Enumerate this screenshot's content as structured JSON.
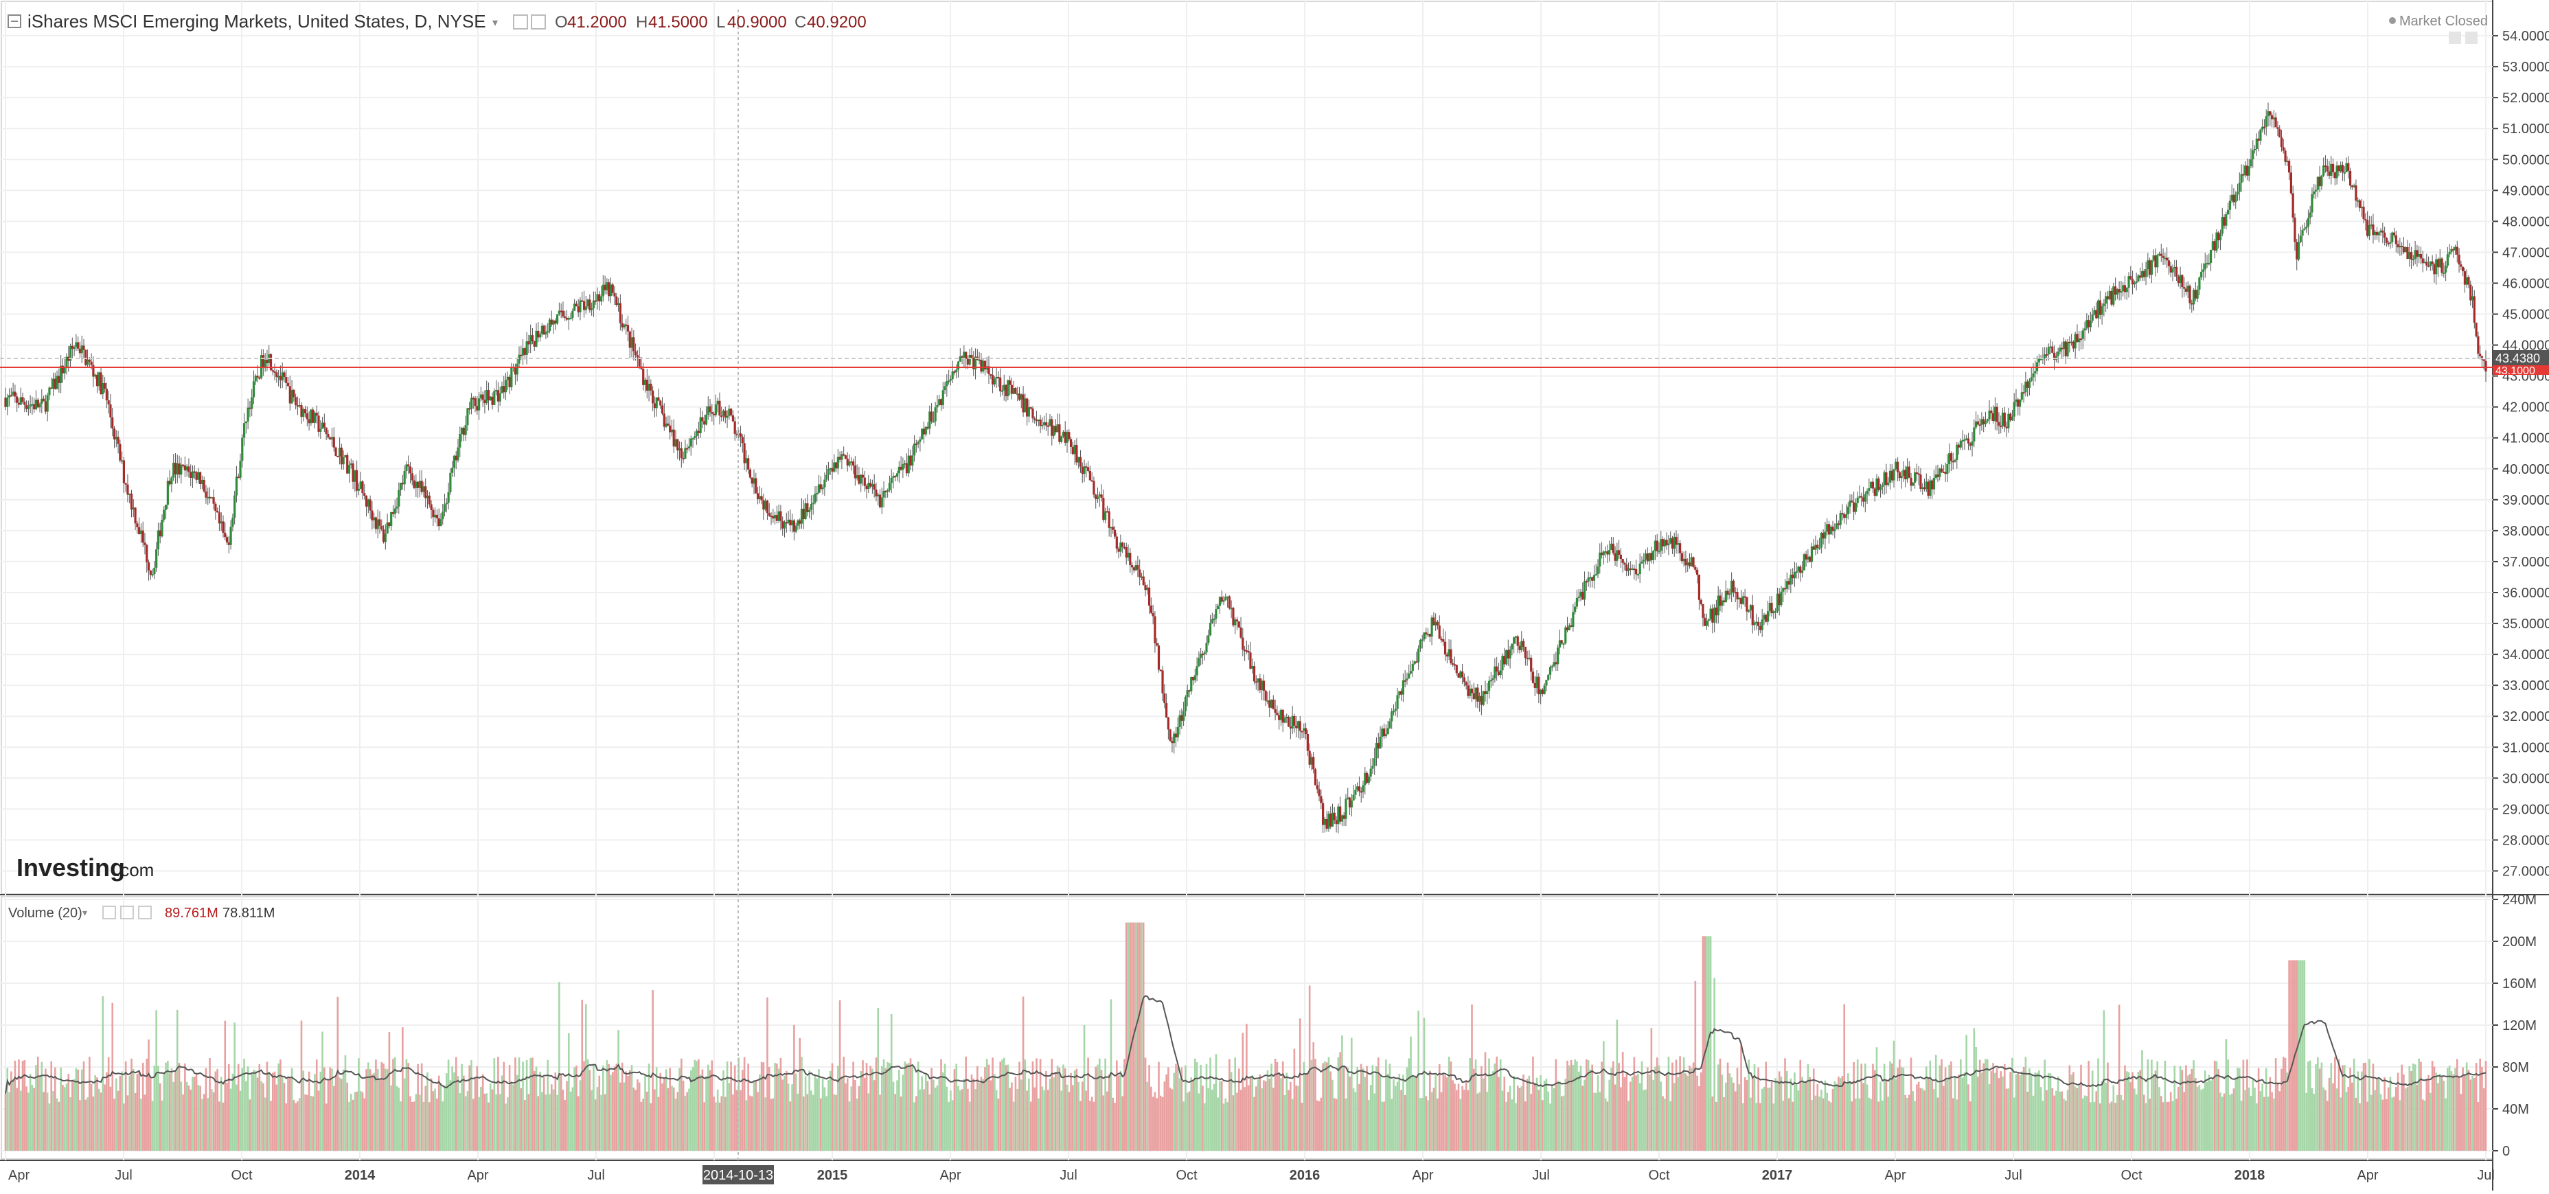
{
  "header": {
    "title": "iShares MSCI Emerging Markets, United States, D, NYSE",
    "open_label": "O",
    "open_value": "41.2000",
    "high_label": "H",
    "high_value": "41.5000",
    "low_label": "L",
    "low_value": "40.9000",
    "close_label": "C",
    "close_value": "40.9200",
    "market_status": "Market Closed"
  },
  "watermark": {
    "brand": "Investing",
    "suffix": ".com"
  },
  "volume_legend": {
    "label": "Volume (20)",
    "value": "89.761M",
    "ma_value": "78.811M"
  },
  "price_markers": {
    "last": "43.4380",
    "current": "43.1000"
  },
  "crosshair_date": "2014-10-13",
  "colors": {
    "up": "#2e8b3a",
    "down": "#a52a2a",
    "vol_up": "#a5d6a7",
    "vol_down": "#e8a0a0",
    "last_line": "#e53935",
    "ma": "#555555"
  },
  "chart_data": [
    {
      "type": "candlestick",
      "title": "iShares MSCI Emerging Markets, United States, D, NYSE",
      "x_ticks": [
        "Apr",
        "Jul",
        "Oct",
        "2014",
        "Apr",
        "Jul",
        "2014-10-13",
        "2015",
        "Apr",
        "Jul",
        "Oct",
        "2016",
        "Apr",
        "Jul",
        "Oct",
        "2017",
        "Apr",
        "Jul",
        "Oct",
        "2018",
        "Apr",
        "Jul"
      ],
      "y_ticks": [
        "54.0000",
        "53.0000",
        "52.0000",
        "51.0000",
        "50.0000",
        "49.0000",
        "48.0000",
        "47.0000",
        "46.0000",
        "45.0000",
        "44.0000",
        "43.0000",
        "42.0000",
        "41.0000",
        "40.0000",
        "39.0000",
        "38.0000",
        "37.0000",
        "36.0000",
        "35.0000",
        "34.0000",
        "33.0000",
        "32.0000",
        "31.0000",
        "30.0000",
        "29.0000",
        "28.0000",
        "27.0000"
      ],
      "ylim": [
        26.3,
        54.8
      ],
      "xlim": [
        2013.25,
        2018.5
      ],
      "grid": true,
      "series": [
        {
          "x": [
            2013.25,
            2013.33,
            2013.4,
            2013.46,
            2013.5,
            2013.56,
            2013.6,
            2013.66,
            2013.72,
            2013.76,
            2013.8,
            2013.86,
            2013.92,
            2013.98,
            2014.05,
            2014.1,
            2014.17,
            2014.23,
            2014.3,
            2014.38,
            2014.46,
            2014.53,
            2014.6,
            2014.63,
            2014.68,
            2014.75,
            2014.78,
            2014.85,
            2014.92,
            2014.97,
            2015.02,
            2015.1,
            2015.17,
            2015.22,
            2015.27,
            2015.32,
            2015.37,
            2015.44,
            2015.5,
            2015.55,
            2015.6,
            2015.65,
            2015.67,
            2015.72,
            2015.77,
            2015.83,
            2015.88,
            2015.94,
            2016.0,
            2016.04,
            2016.08,
            2016.13,
            2016.2,
            2016.27,
            2016.33,
            2016.37,
            2016.45,
            2016.5,
            2016.58,
            2016.64,
            2016.7,
            2016.76,
            2016.82,
            2016.85,
            2016.9,
            2016.96,
            2017.0,
            2017.08,
            2017.16,
            2017.25,
            2017.32,
            2017.38,
            2017.45,
            2017.49,
            2017.55,
            2017.62,
            2017.68,
            2017.75,
            2017.82,
            2017.88,
            2017.93,
            2017.99,
            2018.04,
            2018.08,
            2018.1,
            2018.15,
            2018.2,
            2018.25,
            2018.3,
            2018.35,
            2018.4,
            2018.44,
            2018.47,
            2018.49
          ],
          "y": [
            42.3,
            42.0,
            44.1,
            42.5,
            39.8,
            36.6,
            40.0,
            39.8,
            37.5,
            41.8,
            43.8,
            42.2,
            41.3,
            40.0,
            37.8,
            40.0,
            38.3,
            42.0,
            42.5,
            44.5,
            45.2,
            45.8,
            43.0,
            42.0,
            40.5,
            42.0,
            41.8,
            39.0,
            38.0,
            39.5,
            40.5,
            39.0,
            40.4,
            42.0,
            43.7,
            43.3,
            42.6,
            41.5,
            41.0,
            39.5,
            37.7,
            36.5,
            35.8,
            31.0,
            33.5,
            36.0,
            33.8,
            32.0,
            31.5,
            28.5,
            28.9,
            30.0,
            32.8,
            35.0,
            33.2,
            32.5,
            34.5,
            32.7,
            35.8,
            37.5,
            36.7,
            37.8,
            37.0,
            35.0,
            36.2,
            35.0,
            35.7,
            37.5,
            38.8,
            40.0,
            39.4,
            40.5,
            41.8,
            41.5,
            43.5,
            44.0,
            45.2,
            46.2,
            46.8,
            45.5,
            47.5,
            49.5,
            51.6,
            50.0,
            47.0,
            49.5,
            49.8,
            47.8,
            47.5,
            46.8,
            46.5,
            47.0,
            45.5,
            43.3
          ]
        }
      ]
    },
    {
      "type": "bar",
      "title": "Volume (20)",
      "y_ticks": [
        "240M",
        "200M",
        "160M",
        "120M",
        "80M",
        "40M",
        "0"
      ],
      "ylim": [
        0,
        240
      ],
      "unit": "M",
      "grid": true
    }
  ]
}
